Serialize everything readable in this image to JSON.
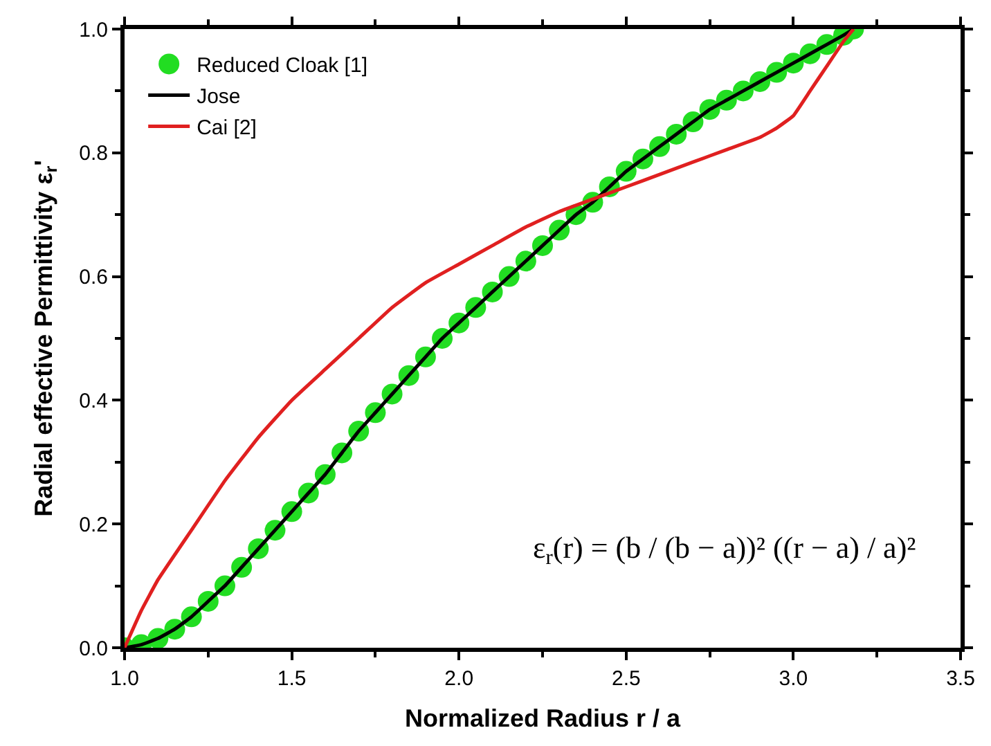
{
  "chart_data": {
    "type": "line",
    "xlabel": "Normalized Radius r / a",
    "ylabel": "Radial effective Permittivity ε$_{r}$'",
    "xlim": [
      1.0,
      3.5
    ],
    "xticks": [
      {
        "value": 1.0,
        "label": "1.0"
      },
      1.5,
      {
        "value": 2.0,
        "label": "2.0"
      },
      2.5,
      {
        "value": 3.0,
        "label": "3.0"
      },
      3.5
    ],
    "ylim": [
      0.0,
      1.0
    ],
    "yticks": [
      {
        "value": 0.0,
        "label": "0.0"
      },
      0.2,
      0.4,
      0.6,
      0.8,
      {
        "value": 1.0,
        "label": "1.0"
      }
    ],
    "legend": "top left",
    "series": [
      {
        "name": "Reduced Cloak [1]",
        "type": "scatter",
        "marker": "circle",
        "color": "#22dd22",
        "x": [
          1.0,
          1.05,
          1.1,
          1.15,
          1.2,
          1.25,
          1.3,
          1.35,
          1.4,
          1.45,
          1.5,
          1.55,
          1.6,
          1.65,
          1.7,
          1.75,
          1.8,
          1.85,
          1.9,
          1.95,
          2.0,
          2.05,
          2.1,
          2.15,
          2.2,
          2.25,
          2.3,
          2.35,
          2.4,
          2.45,
          2.5,
          2.55,
          2.6,
          2.65,
          2.7,
          2.75,
          2.8,
          2.85,
          2.9,
          2.95,
          3.0,
          3.05,
          3.1,
          3.15,
          3.18
        ],
        "values": [
          0.0,
          0.005,
          0.015,
          0.03,
          0.05,
          0.075,
          0.1,
          0.13,
          0.16,
          0.19,
          0.22,
          0.25,
          0.28,
          0.315,
          0.35,
          0.38,
          0.41,
          0.44,
          0.47,
          0.5,
          0.525,
          0.55,
          0.575,
          0.6,
          0.625,
          0.65,
          0.675,
          0.7,
          0.72,
          0.745,
          0.77,
          0.79,
          0.81,
          0.83,
          0.85,
          0.87,
          0.885,
          0.9,
          0.915,
          0.93,
          0.945,
          0.96,
          0.975,
          0.99,
          1.0
        ]
      },
      {
        "name": "Jose",
        "marker": "none",
        "color": "#000000",
        "x": [
          1.0,
          1.05,
          1.1,
          1.15,
          1.2,
          1.25,
          1.3,
          1.35,
          1.4,
          1.45,
          1.5,
          1.55,
          1.6,
          1.65,
          1.7,
          1.75,
          1.8,
          1.85,
          1.9,
          1.95,
          2.0,
          2.05,
          2.1,
          2.15,
          2.2,
          2.25,
          2.3,
          2.35,
          2.4,
          2.45,
          2.5,
          2.55,
          2.6,
          2.65,
          2.7,
          2.75,
          2.8,
          2.85,
          2.9,
          2.95,
          3.0,
          3.05,
          3.1,
          3.15,
          3.18
        ],
        "values": [
          0.0,
          0.005,
          0.015,
          0.03,
          0.05,
          0.075,
          0.1,
          0.13,
          0.16,
          0.19,
          0.22,
          0.25,
          0.28,
          0.315,
          0.35,
          0.38,
          0.41,
          0.44,
          0.47,
          0.5,
          0.525,
          0.55,
          0.575,
          0.6,
          0.625,
          0.65,
          0.675,
          0.7,
          0.72,
          0.745,
          0.77,
          0.79,
          0.81,
          0.83,
          0.85,
          0.87,
          0.885,
          0.9,
          0.915,
          0.93,
          0.945,
          0.96,
          0.975,
          0.99,
          1.0
        ]
      },
      {
        "name": "Cai [2]",
        "type": "line",
        "marker": "none",
        "color": "#e02020",
        "x": [
          1.0,
          1.05,
          1.1,
          1.2,
          1.3,
          1.4,
          1.5,
          1.6,
          1.7,
          1.8,
          1.9,
          2.0,
          2.1,
          2.2,
          2.3,
          2.4,
          2.5,
          2.6,
          2.7,
          2.8,
          2.9,
          2.95,
          3.0,
          3.05,
          3.1,
          3.15,
          3.18
        ],
        "values": [
          0.0,
          0.06,
          0.11,
          0.19,
          0.27,
          0.34,
          0.4,
          0.45,
          0.5,
          0.55,
          0.59,
          0.62,
          0.65,
          0.68,
          0.705,
          0.725,
          0.745,
          0.765,
          0.785,
          0.805,
          0.825,
          0.84,
          0.86,
          0.9,
          0.94,
          0.98,
          1.0
        ]
      }
    ],
    "annotations": [
      "ε$_{r}$(r) = (b / (b − a))² ((r − a) / a)²"
    ]
  }
}
